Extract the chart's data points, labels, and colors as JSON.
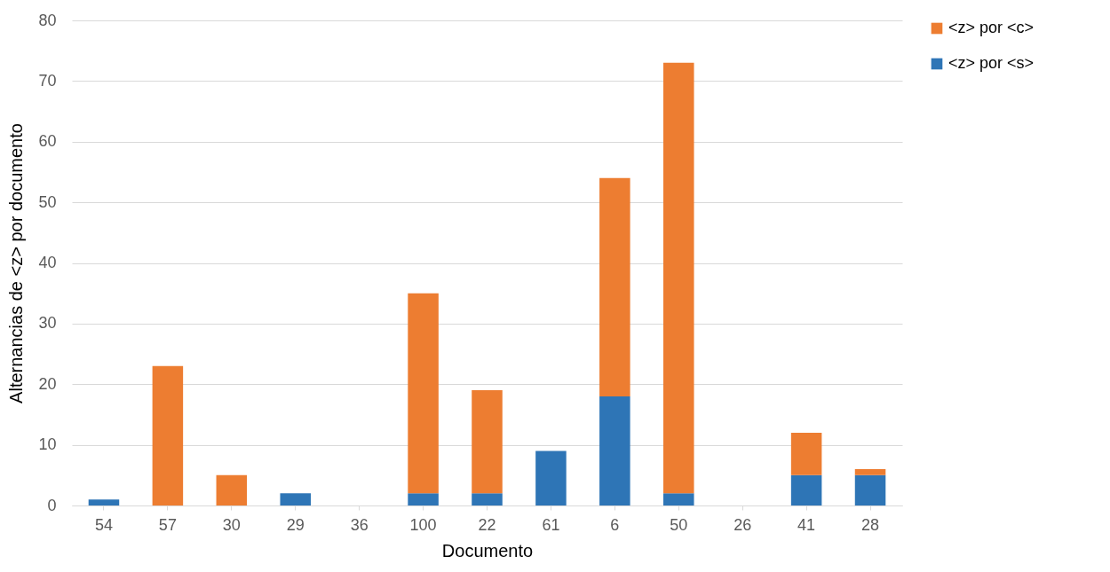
{
  "chart_data": {
    "type": "bar",
    "stacked": true,
    "xlabel": "Documento",
    "ylabel": "Alternancias de <z> por documento",
    "categories": [
      "54",
      "57",
      "30",
      "29",
      "36",
      "100",
      "22",
      "61",
      "6",
      "50",
      "26",
      "41",
      "28"
    ],
    "series": [
      {
        "name": "<z> por <s>",
        "color": "#2e75b6",
        "values": [
          1,
          0,
          0,
          2,
          0,
          2,
          2,
          9,
          18,
          2,
          0,
          5,
          5
        ]
      },
      {
        "name": "<z> por <c>",
        "color": "#ed7d31",
        "values": [
          0,
          23,
          5,
          0,
          0,
          33,
          17,
          0,
          36,
          71,
          0,
          7,
          1
        ]
      }
    ],
    "ylim": [
      0,
      80
    ],
    "yticks": [
      0,
      10,
      20,
      30,
      40,
      50,
      60,
      70,
      80
    ],
    "grid": "y",
    "legend": "right"
  }
}
